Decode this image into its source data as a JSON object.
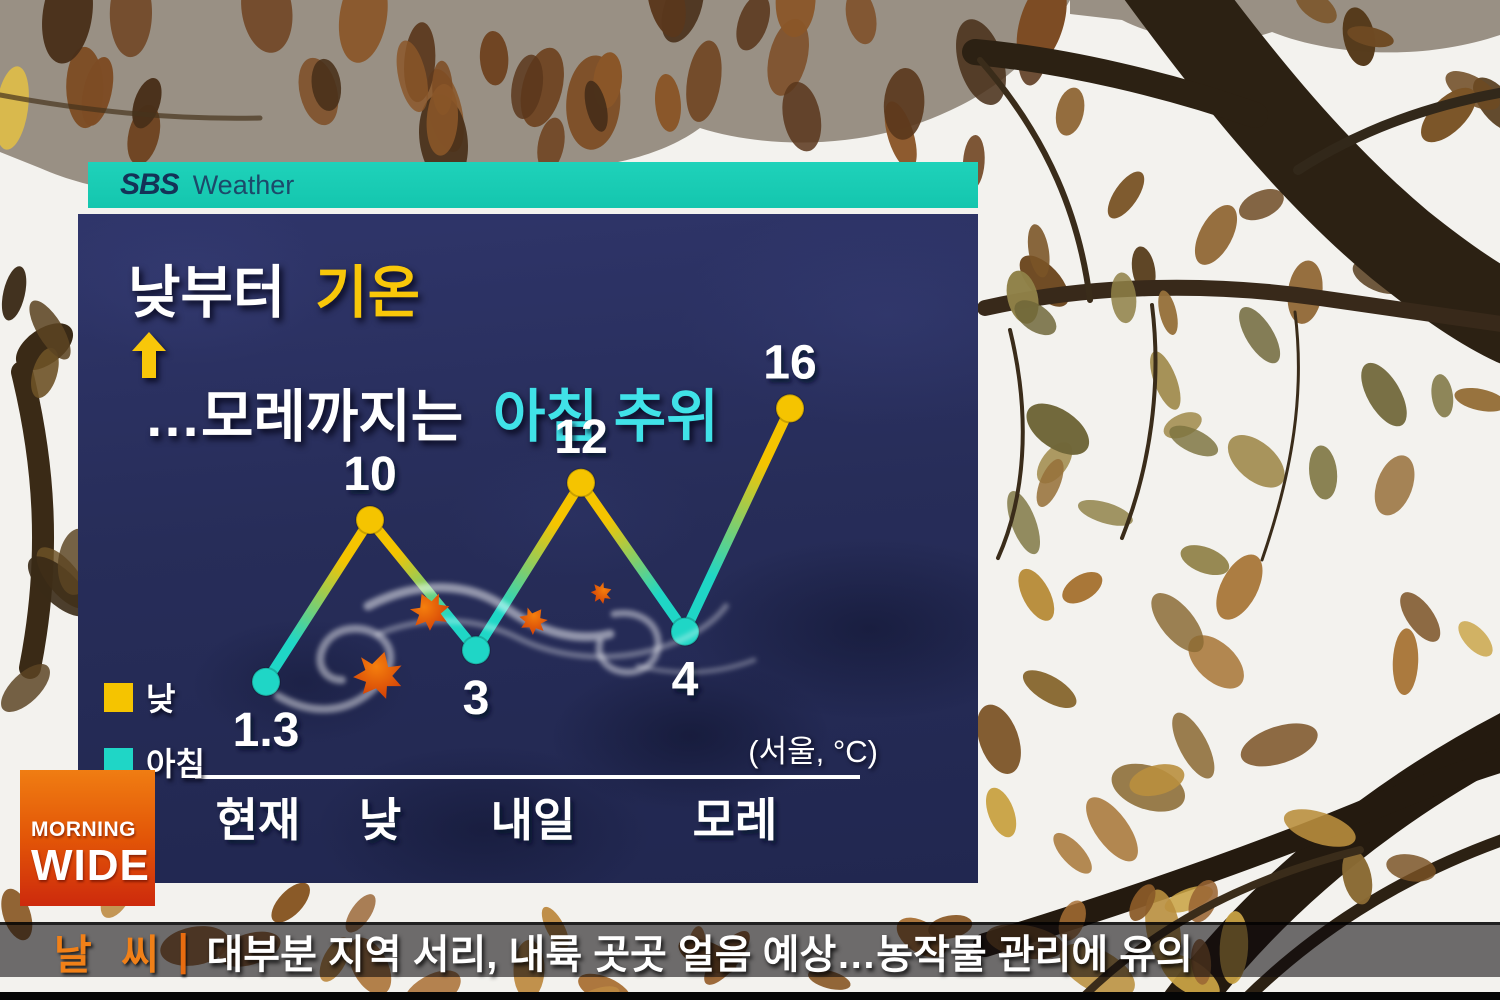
{
  "sbs_bar": {
    "brand": "SBS",
    "label": "Weather"
  },
  "panel": {
    "title": {
      "line1_white": "낮부터",
      "line1_yellow": "기온",
      "line2_white": "…모레까지는",
      "line2_cyan": "아침 추위"
    },
    "unit_note": "(서울, °C)"
  },
  "legend": {
    "items": [
      {
        "label": "낮",
        "color": "#f5c400"
      },
      {
        "label": "아침",
        "color": "#1fd6c6"
      }
    ]
  },
  "chart_data": {
    "type": "line",
    "title": "낮부터 기온↑ …모레까지는 아침 추위",
    "location_unit": "(서울, °C)",
    "x_axis_labels": [
      "현재",
      "낮",
      "내일",
      "모레"
    ],
    "ylim": [
      0,
      18
    ],
    "grid": false,
    "legend": [
      {
        "name": "낮",
        "color": "#f5c400"
      },
      {
        "name": "아침",
        "color": "#1fd6c6"
      }
    ],
    "points": [
      {
        "series": "아침",
        "x": "현재",
        "value": 1.3,
        "label": "1.3"
      },
      {
        "series": "낮",
        "x": "낮",
        "value": 10,
        "label": "10"
      },
      {
        "series": "아침",
        "x": "내일",
        "value": 3,
        "label": "3"
      },
      {
        "series": "낮",
        "x": "내일",
        "value": 12,
        "label": "12"
      },
      {
        "series": "아침",
        "x": "모레",
        "value": 4,
        "label": "4"
      },
      {
        "series": "낮",
        "x": "모레",
        "value": 16,
        "label": "16"
      }
    ]
  },
  "morning_wide": {
    "line1": "MORNING",
    "line2": "WIDE"
  },
  "ticker": {
    "category": "날 씨",
    "separator": "|",
    "headline": "대부분 지역 서리, 내륙 곳곳 얼음 예상…농작물 관리에 유의"
  },
  "colors": {
    "teal_bar": "#14c6ae",
    "panel_navy": "#272d59",
    "day_yellow": "#f5c400",
    "morning_cyan": "#1fd6c6",
    "title_yellow": "#f8c709",
    "title_cyan": "#40e2e8",
    "ticker_orange": "#f08018",
    "mw_orange_top": "#f07d12",
    "mw_red_bottom": "#cd2a0d"
  }
}
